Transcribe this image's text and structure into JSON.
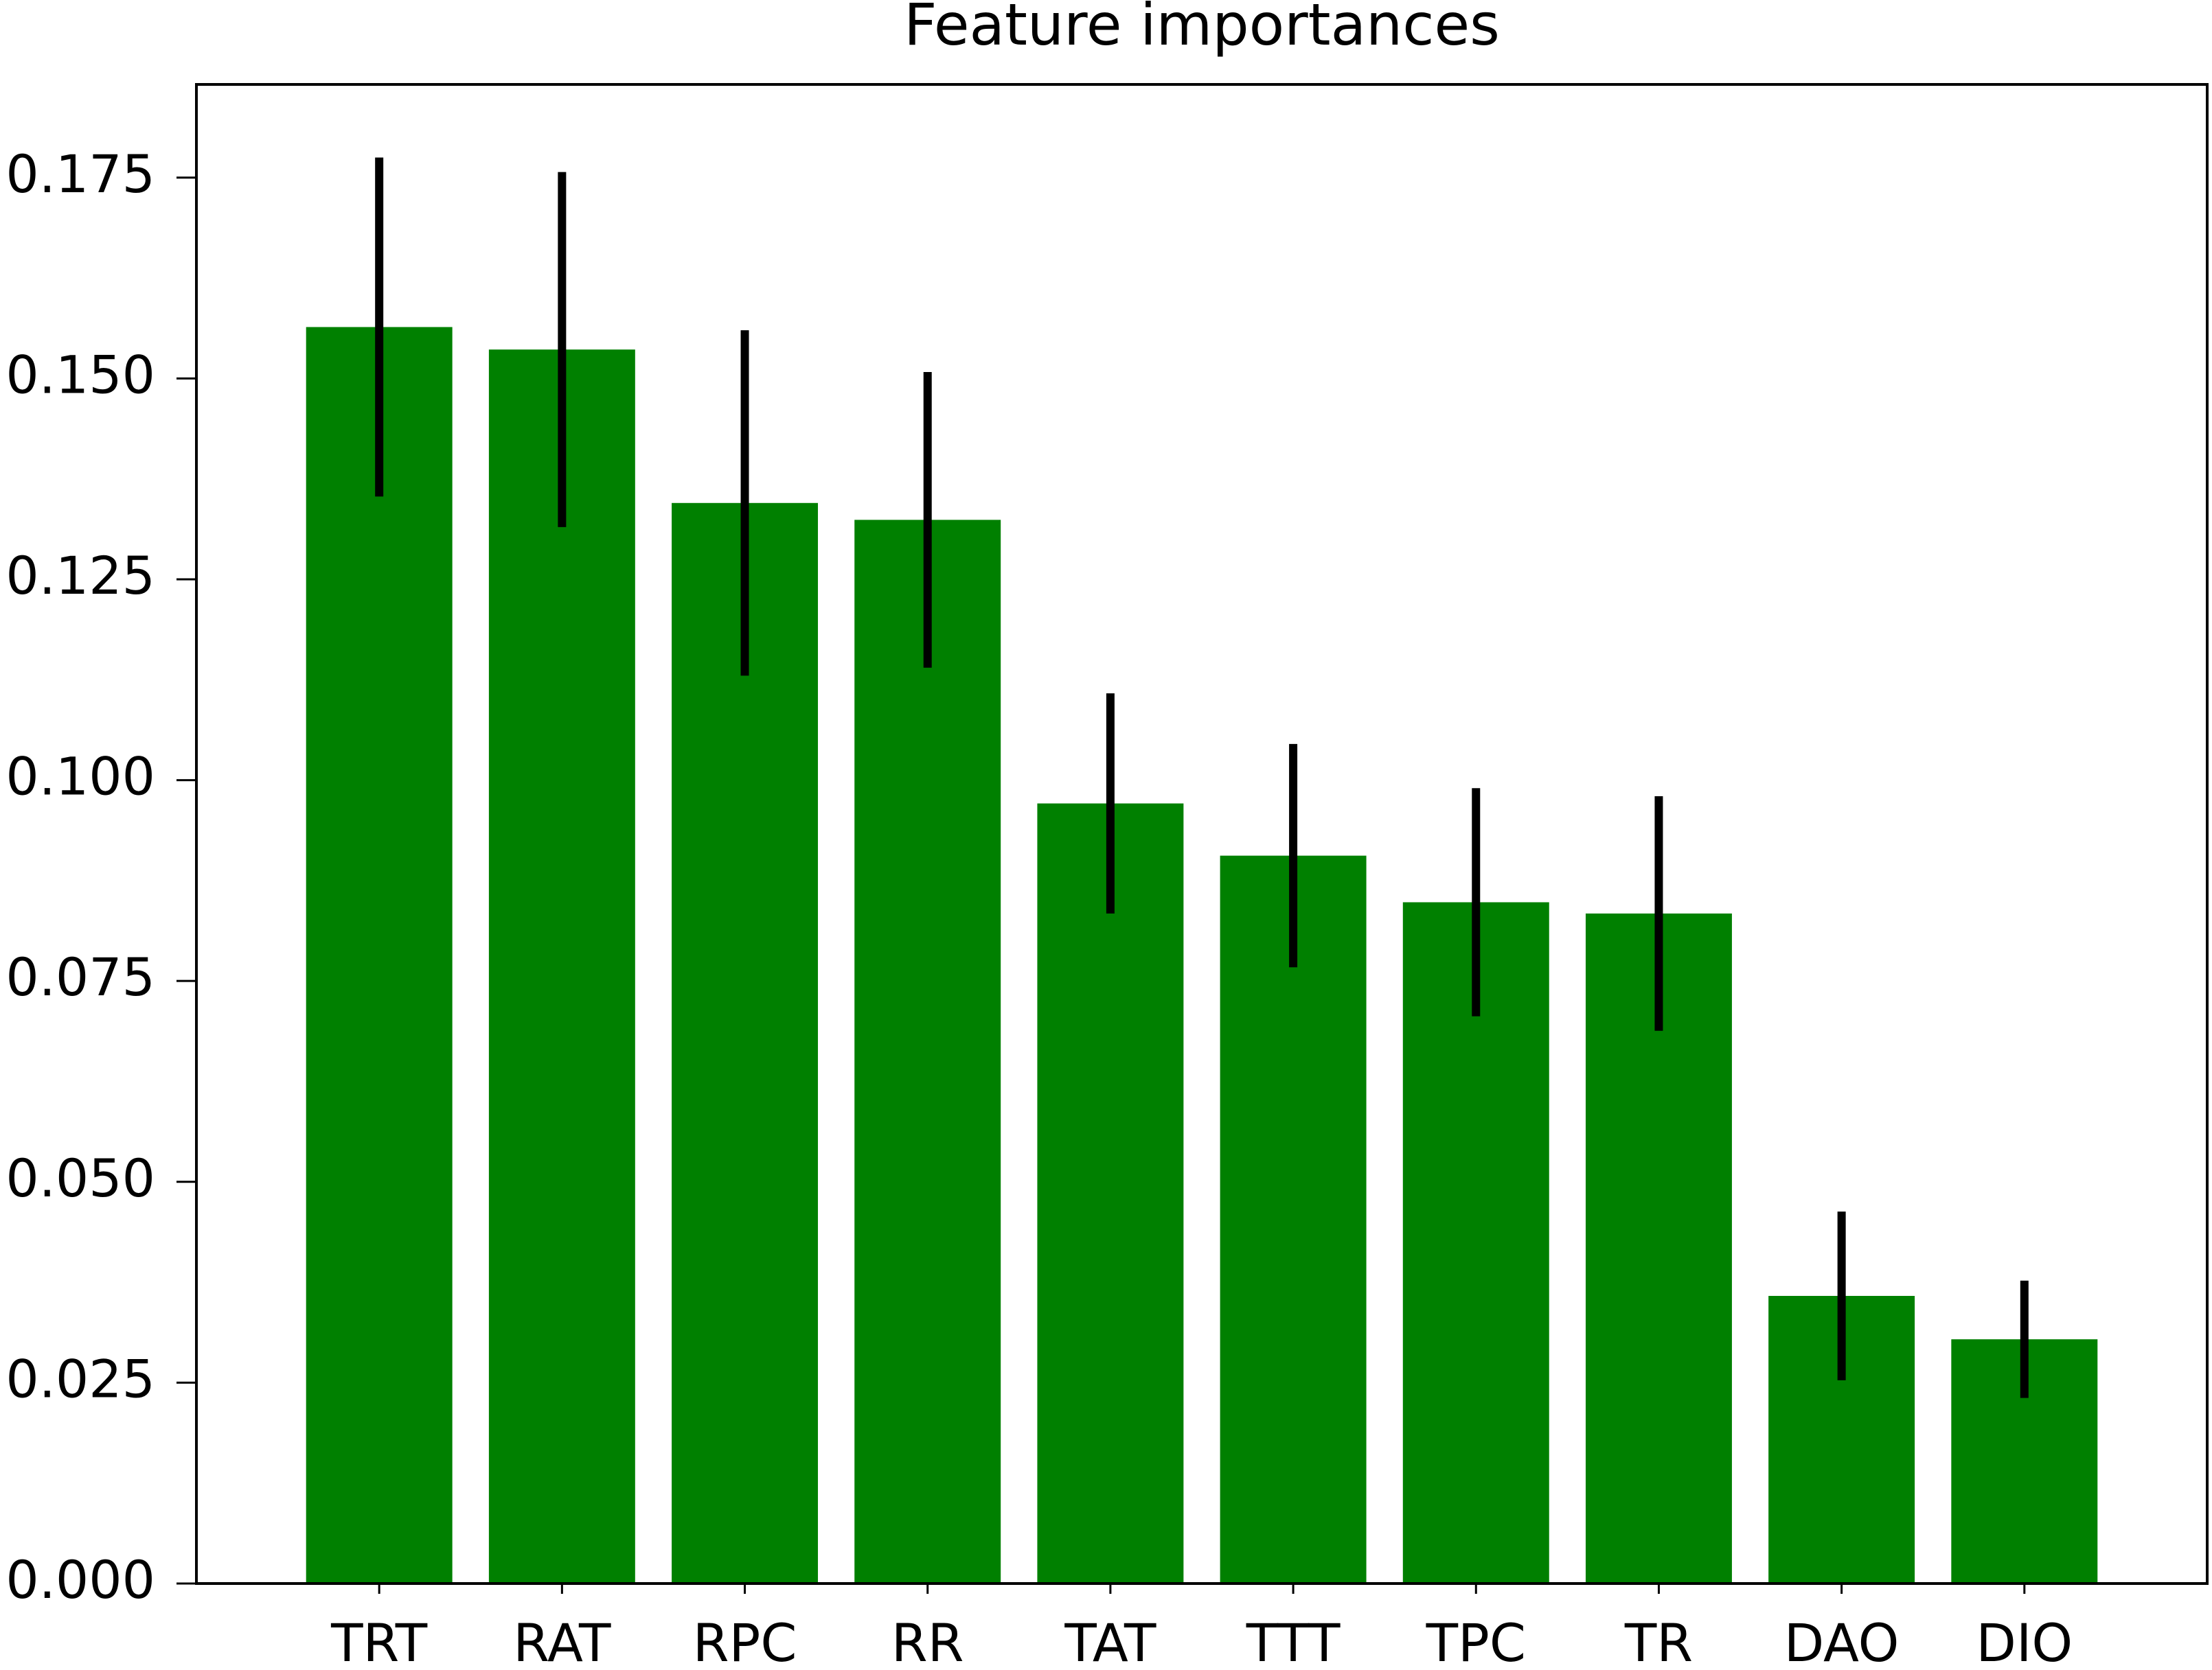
{
  "chart_data": {
    "type": "bar",
    "title": "Feature importances",
    "categories": [
      "TRT",
      "RAT",
      "RPC",
      "RR",
      "TAT",
      "TTT",
      "TPC",
      "TR",
      "DAO",
      "DIO"
    ],
    "values": [
      0.1564,
      0.1536,
      0.1345,
      0.1324,
      0.0971,
      0.0906,
      0.0848,
      0.0834,
      0.0358,
      0.0304
    ],
    "errors": [
      0.0211,
      0.0221,
      0.0215,
      0.0184,
      0.0137,
      0.0139,
      0.0142,
      0.0146,
      0.0105,
      0.0073
    ],
    "color": "#008000",
    "error_color": "#000000",
    "ylim": [
      0,
      0.1866
    ],
    "yticks": [
      {
        "value": 0,
        "label": "0.000"
      },
      {
        "value": 0.025,
        "label": "0.025"
      },
      {
        "value": 0.05,
        "label": "0.050"
      },
      {
        "value": 0.075,
        "label": "0.075"
      },
      {
        "value": 0.1,
        "label": "0.100"
      },
      {
        "value": 0.125,
        "label": "0.125"
      },
      {
        "value": 0.15,
        "label": "0.150"
      },
      {
        "value": 0.175,
        "label": "0.175"
      }
    ],
    "grid": false
  }
}
